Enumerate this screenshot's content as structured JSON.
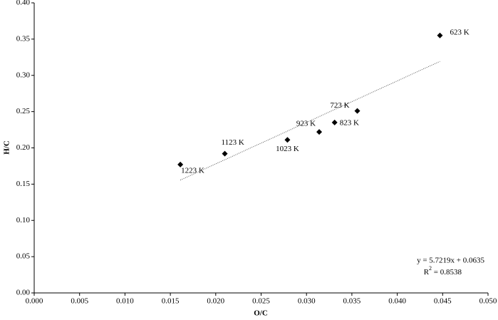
{
  "chart_data": {
    "type": "scatter",
    "x_label": "O/C",
    "y_label": "H/C",
    "x": [
      0.0447,
      0.0356,
      0.0331,
      0.0314,
      0.0279,
      0.021,
      0.0161
    ],
    "series": [
      {
        "color": "#000000",
        "values": [
          0.355,
          0.251,
          0.235,
          0.222,
          0.211,
          0.192,
          0.177
        ]
      }
    ],
    "labels": [
      "623 K",
      "723 K",
      "823 K",
      "923 K",
      "1023 K",
      "1123 K",
      "1223 K"
    ],
    "xlim": [
      0,
      0.05
    ],
    "xticks": [
      {
        "value": 0,
        "label": "0.000"
      },
      {
        "value": 0.005,
        "label": "0.005"
      },
      {
        "value": 0.01,
        "label": "0.010"
      },
      {
        "value": 0.015,
        "label": "0.015"
      },
      {
        "value": 0.02,
        "label": "0.020"
      },
      {
        "value": 0.025,
        "label": "0.025"
      },
      {
        "value": 0.03,
        "label": "0.030"
      },
      {
        "value": 0.035,
        "label": "0.035"
      },
      {
        "value": 0.04,
        "label": "0.040"
      },
      {
        "value": 0.045,
        "label": "0.045"
      },
      {
        "value": 0.05,
        "label": "0.050"
      }
    ],
    "ylim": [
      0,
      0.4
    ],
    "yticks": [
      {
        "value": 0,
        "label": "0.00"
      },
      {
        "value": 0.05,
        "label": "0.05"
      },
      {
        "value": 0.1,
        "label": "0.10"
      },
      {
        "value": 0.15,
        "label": "0.15"
      },
      {
        "value": 0.2,
        "label": "0.20"
      },
      {
        "value": 0.25,
        "label": "0.25"
      },
      {
        "value": 0.3,
        "label": "0.30"
      },
      {
        "value": 0.35,
        "label": "0.35"
      },
      {
        "value": 0.4,
        "label": "0.40"
      }
    ],
    "grid": false,
    "trendline": {
      "slope": 5.7219,
      "intercept": 0.0635,
      "label": "y = 5.7219x + 0.0635",
      "r2_base": "R",
      "r2_sup": "2",
      "r2_rest": " = 0.8538"
    }
  }
}
